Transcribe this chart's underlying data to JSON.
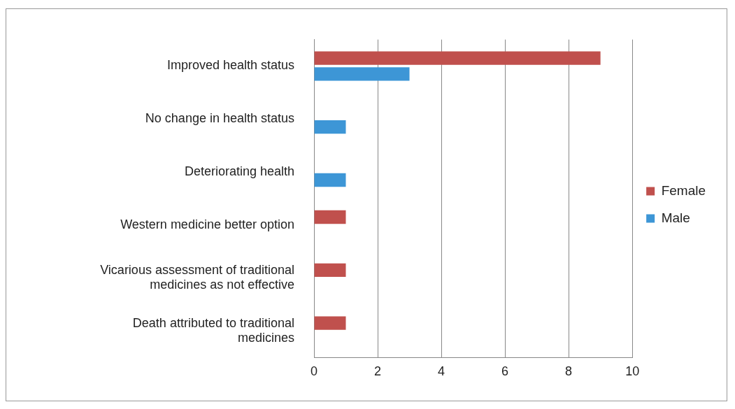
{
  "chart_data": {
    "type": "bar",
    "orientation": "horizontal",
    "categories": [
      "Improved health status",
      "No change in health status",
      "Deteriorating health",
      "Western medicine better option",
      "Vicarious assessment of traditional medicines as not effective",
      "Death attributed to traditional medicines"
    ],
    "series": [
      {
        "name": "Female",
        "color": "#c0504d",
        "values": [
          9,
          0,
          0,
          1,
          1,
          1
        ]
      },
      {
        "name": "Male",
        "color": "#3d96d6",
        "values": [
          3,
          1,
          1,
          0,
          0,
          0
        ]
      }
    ],
    "xlim": [
      0,
      10
    ],
    "xticks": [
      0,
      2,
      4,
      6,
      8,
      10
    ],
    "grid": "x",
    "legend": "right"
  }
}
